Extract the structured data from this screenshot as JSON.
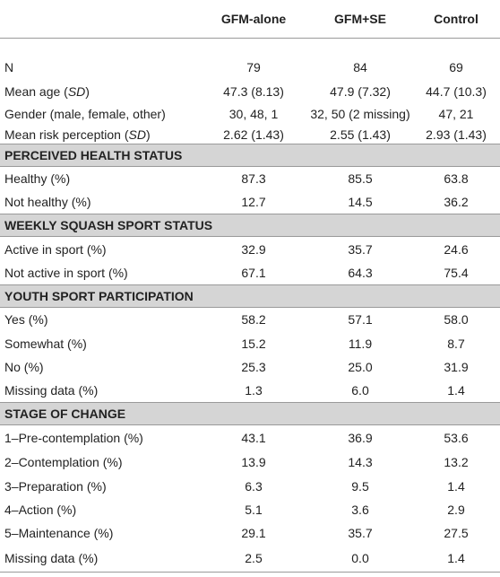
{
  "table": {
    "columns": [
      "GFM-alone",
      "GFM+SE",
      "Control"
    ],
    "rows": [
      {
        "label": [
          {
            "text": "N"
          }
        ],
        "values": [
          "79",
          "84",
          "69"
        ]
      },
      {
        "label": [
          {
            "text": "Mean age ("
          },
          {
            "text": "SD",
            "italic": true
          },
          {
            "text": ")"
          }
        ],
        "values": [
          "47.3 (8.13)",
          "47.9 (7.32)",
          "44.7 (10.3)"
        ]
      },
      {
        "label": [
          {
            "text": "Gender (male, female, other)"
          }
        ],
        "values": [
          "30, 48, 1",
          "32, 50 (2 missing)",
          "47, 21"
        ]
      },
      {
        "label": [
          {
            "text": "Mean risk perception ("
          },
          {
            "text": "SD",
            "italic": true
          },
          {
            "text": ")"
          }
        ],
        "values": [
          "2.62 (1.43)",
          "2.55 (1.43)",
          "2.93 (1.43)"
        ]
      },
      {
        "section": "PERCEIVED HEALTH STATUS"
      },
      {
        "label": [
          {
            "text": "Healthy (%)"
          }
        ],
        "values": [
          "87.3",
          "85.5",
          "63.8"
        ]
      },
      {
        "label": [
          {
            "text": "Not healthy (%)"
          }
        ],
        "values": [
          "12.7",
          "14.5",
          "36.2"
        ]
      },
      {
        "section": "WEEKLY SQUASH SPORT STATUS"
      },
      {
        "label": [
          {
            "text": "Active in sport (%)"
          }
        ],
        "values": [
          "32.9",
          "35.7",
          "24.6"
        ]
      },
      {
        "label": [
          {
            "text": "Not active in sport (%)"
          }
        ],
        "values": [
          "67.1",
          "64.3",
          "75.4"
        ]
      },
      {
        "section": "YOUTH SPORT PARTICIPATION"
      },
      {
        "label": [
          {
            "text": "Yes (%)"
          }
        ],
        "values": [
          "58.2",
          "57.1",
          "58.0"
        ]
      },
      {
        "label": [
          {
            "text": "Somewhat (%)"
          }
        ],
        "values": [
          "15.2",
          "11.9",
          "8.7"
        ]
      },
      {
        "label": [
          {
            "text": "No (%)"
          }
        ],
        "values": [
          "25.3",
          "25.0",
          "31.9"
        ]
      },
      {
        "label": [
          {
            "text": "Missing data (%)"
          }
        ],
        "values": [
          "1.3",
          "6.0",
          "1.4"
        ]
      },
      {
        "section": "STAGE OF CHANGE"
      },
      {
        "label": [
          {
            "text": "1–Pre-contemplation (%)"
          }
        ],
        "values": [
          "43.1",
          "36.9",
          "53.6"
        ]
      },
      {
        "label": [
          {
            "text": "2–Contemplation (%)"
          }
        ],
        "values": [
          "13.9",
          "14.3",
          "13.2"
        ]
      },
      {
        "label": [
          {
            "text": "3–Preparation (%)"
          }
        ],
        "values": [
          "6.3",
          "9.5",
          "1.4"
        ]
      },
      {
        "label": [
          {
            "text": "4–Action (%)"
          }
        ],
        "values": [
          "5.1",
          "3.6",
          "2.9"
        ]
      },
      {
        "label": [
          {
            "text": "5–Maintenance (%)"
          }
        ],
        "values": [
          "29.1",
          "35.7",
          "27.5"
        ]
      },
      {
        "label": [
          {
            "text": "Missing data (%)"
          }
        ],
        "values": [
          "2.5",
          "0.0",
          "1.4"
        ]
      }
    ]
  }
}
